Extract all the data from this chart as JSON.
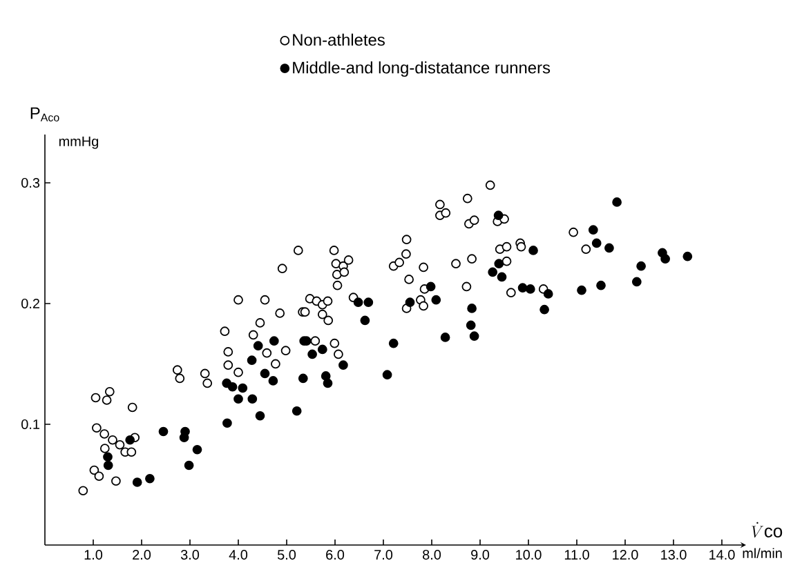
{
  "chart_data": {
    "type": "scatter",
    "xlabel": "\\dot{V}\\mathrm{co}",
    "ylabel": "P$_{Aco}$",
    "annotations": [
      "mmHg",
      "ml/min"
    ],
    "xlim": [
      0,
      14.5
    ],
    "ylim": [
      0,
      0.34
    ],
    "xticks": [
      {
        "value": 1,
        "label": "1.0"
      },
      {
        "value": 2,
        "label": "2.0"
      },
      {
        "value": 3,
        "label": "3.0"
      },
      {
        "value": 4,
        "label": "4.0"
      },
      {
        "value": 5,
        "label": "5.0"
      },
      {
        "value": 6,
        "label": "6.0"
      },
      {
        "value": 7,
        "label": "7.0"
      },
      {
        "value": 8,
        "label": "8.0"
      },
      {
        "value": 9,
        "label": "9.0"
      },
      {
        "value": 10,
        "label": "10.0"
      },
      {
        "value": 11,
        "label": "11.0"
      },
      {
        "value": 12,
        "label": "12.0"
      },
      {
        "value": 13,
        "label": "13.0"
      },
      {
        "value": 14,
        "label": "14.0"
      }
    ],
    "yticks": [
      0.1,
      0.2,
      0.3
    ],
    "legend": "top",
    "grid": false,
    "series": [
      {
        "name": "Non-athletes",
        "color": "#000000",
        "x": [
          0.79,
          1.05,
          1.28,
          1.34,
          1.81,
          1.07,
          1.23,
          1.4,
          1.24,
          1.55,
          1.66,
          1.79,
          1.86,
          1.02,
          1.12,
          1.47,
          2.74,
          2.79,
          3.31,
          3.36,
          3.72,
          3.79,
          3.79,
          4.0,
          4.0,
          4.55,
          4.31,
          4.45,
          4.59,
          4.86,
          4.77,
          4.98,
          4.91,
          5.24,
          5.33,
          5.38,
          5.48,
          5.62,
          5.74,
          5.85,
          5.74,
          5.86,
          5.98,
          6.02,
          6.17,
          6.28,
          6.04,
          6.19,
          6.05,
          6.38,
          5.59,
          5.99,
          6.07,
          7.21,
          7.33,
          7.48,
          7.47,
          7.53,
          7.83,
          7.85,
          7.77,
          7.48,
          7.83,
          8.17,
          8.17,
          8.29,
          8.5,
          8.74,
          8.77,
          8.88,
          8.83,
          8.72,
          9.21,
          9.36,
          9.5,
          9.41,
          9.55,
          9.55,
          9.83,
          9.85,
          9.64,
          10.31,
          10.93,
          11.19
        ],
        "values": [
          0.045,
          0.122,
          0.12,
          0.127,
          0.114,
          0.097,
          0.092,
          0.087,
          0.08,
          0.083,
          0.077,
          0.077,
          0.089,
          0.062,
          0.057,
          0.053,
          0.145,
          0.138,
          0.142,
          0.134,
          0.177,
          0.16,
          0.149,
          0.143,
          0.203,
          0.203,
          0.174,
          0.184,
          0.159,
          0.192,
          0.15,
          0.161,
          0.229,
          0.244,
          0.193,
          0.193,
          0.204,
          0.202,
          0.199,
          0.202,
          0.191,
          0.186,
          0.244,
          0.233,
          0.231,
          0.236,
          0.224,
          0.226,
          0.215,
          0.205,
          0.169,
          0.167,
          0.158,
          0.231,
          0.234,
          0.253,
          0.241,
          0.22,
          0.23,
          0.212,
          0.203,
          0.196,
          0.198,
          0.282,
          0.273,
          0.275,
          0.233,
          0.287,
          0.266,
          0.269,
          0.237,
          0.214,
          0.298,
          0.268,
          0.27,
          0.245,
          0.235,
          0.247,
          0.25,
          0.247,
          0.209,
          0.212,
          0.259,
          0.245
        ]
      },
      {
        "name": "Middle-and long-distatance runners",
        "color": "#000000",
        "x": [
          1.3,
          1.31,
          1.76,
          1.91,
          2.17,
          2.45,
          2.9,
          2.88,
          3.15,
          2.98,
          3.76,
          3.88,
          4.09,
          4.0,
          3.77,
          4.29,
          4.45,
          4.28,
          4.41,
          4.74,
          4.55,
          4.72,
          5.21,
          5.36,
          5.34,
          6.48,
          6.69,
          6.62,
          7.21,
          7.08,
          5.41,
          5.53,
          5.74,
          6.17,
          5.81,
          5.85,
          7.55,
          7.98,
          8.09,
          8.28,
          8.83,
          8.81,
          8.88,
          9.38,
          9.39,
          9.26,
          9.45,
          10.1,
          9.88,
          10.04,
          10.41,
          10.33,
          11.1,
          11.5,
          11.34,
          11.41,
          11.67,
          11.83,
          12.24,
          12.33,
          12.77,
          12.83,
          13.29
        ],
        "values": [
          0.073,
          0.066,
          0.087,
          0.052,
          0.055,
          0.094,
          0.094,
          0.089,
          0.079,
          0.066,
          0.134,
          0.131,
          0.13,
          0.121,
          0.101,
          0.121,
          0.107,
          0.153,
          0.165,
          0.169,
          0.142,
          0.136,
          0.111,
          0.169,
          0.138,
          0.201,
          0.201,
          0.186,
          0.167,
          0.141,
          0.169,
          0.158,
          0.162,
          0.149,
          0.14,
          0.134,
          0.201,
          0.214,
          0.203,
          0.172,
          0.196,
          0.182,
          0.173,
          0.273,
          0.233,
          0.226,
          0.222,
          0.244,
          0.213,
          0.212,
          0.208,
          0.195,
          0.211,
          0.215,
          0.261,
          0.25,
          0.246,
          0.284,
          0.218,
          0.231,
          0.242,
          0.237,
          0.239
        ]
      }
    ]
  }
}
